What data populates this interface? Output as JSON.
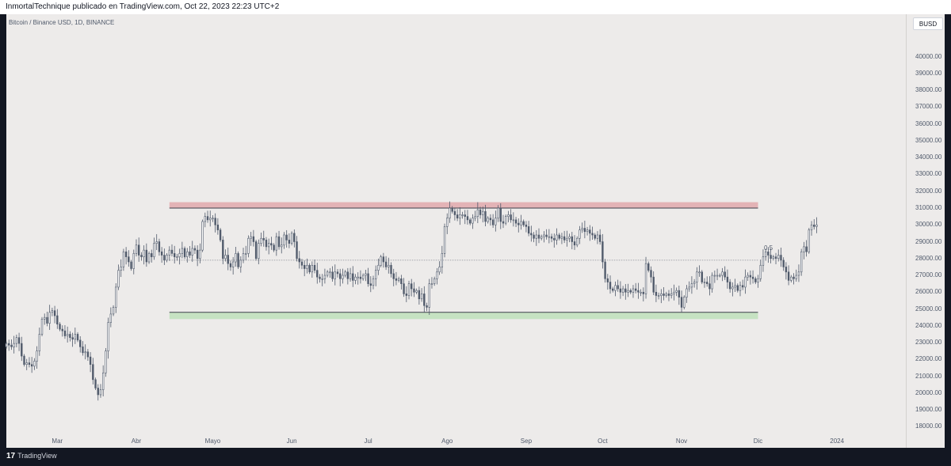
{
  "header": {
    "published_text": "InmortalTechnique publicado en TradingView.com, Oct 22, 2023 22:23 UTC+2"
  },
  "symbol": {
    "title": "Bitcoin / Binance USD, 1D, BINANCE",
    "currency": "BUSD"
  },
  "footer": {
    "logo_mark": "17",
    "logo_text": "TradingView"
  },
  "colors": {
    "background": "#edebea",
    "candle": "#505a6b",
    "resistance_zone": "#e3b3b6",
    "support_zone": "#c6e2c2",
    "level_line": "#3d3f4a"
  },
  "chart_data": {
    "type": "candlestick",
    "ylim": [
      17500,
      41300
    ],
    "y_ticks": [
      18000,
      19000,
      20000,
      21000,
      22000,
      23000,
      24000,
      25000,
      26000,
      27000,
      28000,
      29000,
      30000,
      31000,
      32000,
      33000,
      34000,
      35000,
      36000,
      37000,
      38000,
      39000,
      40000
    ],
    "y_tick_labels": [
      "18000.00",
      "19000.00",
      "20000.00",
      "21000.00",
      "22000.00",
      "23000.00",
      "24000.00",
      "25000.00",
      "26000.00",
      "27000.00",
      "28000.00",
      "29000.00",
      "30000.00",
      "31000.00",
      "32000.00",
      "33000.00",
      "34000.00",
      "35000.00",
      "36000.00",
      "37000.00",
      "38000.00",
      "39000.00",
      "40000.00"
    ],
    "x_range": [
      "2023-02-09",
      "2024-01-28"
    ],
    "x_ticks": [
      {
        "label": "Mar",
        "date": "2023-03-01"
      },
      {
        "label": "Abr",
        "date": "2023-04-01"
      },
      {
        "label": "Mayo",
        "date": "2023-05-01"
      },
      {
        "label": "Jun",
        "date": "2023-06-01"
      },
      {
        "label": "Jul",
        "date": "2023-07-01"
      },
      {
        "label": "Ago",
        "date": "2023-08-01"
      },
      {
        "label": "Sep",
        "date": "2023-09-01"
      },
      {
        "label": "Oct",
        "date": "2023-10-01"
      },
      {
        "label": "Nov",
        "date": "2023-11-01"
      },
      {
        "label": "Dic",
        "date": "2023-12-01"
      },
      {
        "label": "2024",
        "date": "2024-01-01"
      }
    ],
    "close_series": {
      "start": "2023-02-09",
      "interval": "1D",
      "values": [
        22950,
        22850,
        22750,
        22950,
        23300,
        22950,
        22200,
        21700,
        21800,
        21700,
        21600,
        21900,
        22500,
        23500,
        24400,
        24500,
        24150,
        24800,
        24900,
        24600,
        24100,
        23800,
        23700,
        23400,
        23500,
        23300,
        23200,
        23500,
        23150,
        22750,
        22400,
        22450,
        22150,
        21700,
        20800,
        20300,
        19900,
        20200,
        21200,
        22500,
        24200,
        24700,
        25100,
        26300,
        27300,
        27500,
        28400,
        28100,
        27800,
        27400,
        28300,
        28800,
        28200,
        28100,
        28500,
        27800,
        28300,
        28100,
        28900,
        29000,
        28400,
        28200,
        27900,
        28200,
        28500,
        28300,
        28100,
        28100,
        28300,
        28600,
        28100,
        28400,
        28200,
        28600,
        28500,
        28000,
        28500,
        30200,
        30500,
        30300,
        30400,
        30400,
        30000,
        29700,
        29100,
        28000,
        28200,
        27700,
        27500,
        27800,
        28300,
        27500,
        27900,
        28300,
        28300,
        29200,
        29300,
        29000,
        28000,
        28900,
        29200,
        29100,
        28700,
        28900,
        28800,
        28500,
        29300,
        28700,
        28800,
        29400,
        29100,
        28900,
        29500,
        29000,
        28000,
        27800,
        27600,
        27400,
        27600,
        27200,
        27600,
        27300,
        26900,
        26800,
        26800,
        27000,
        27200,
        27200,
        26800,
        27200,
        27100,
        26800,
        27000,
        27200,
        26800,
        27100,
        26700,
        26900,
        26900,
        26800,
        27000,
        27100,
        26500,
        26400,
        26800,
        27300,
        27600,
        28100,
        27800,
        27500,
        27600,
        27100,
        26800,
        26700,
        26800,
        26500,
        25900,
        25800,
        26500,
        26200,
        26000,
        26100,
        25600,
        25900,
        25200,
        25100,
        26500,
        26500,
        26800,
        27200,
        27500,
        28300,
        29900,
        30400,
        31000,
        30800,
        30600,
        30400,
        30600,
        30600,
        30500,
        30300,
        30100,
        30400,
        30500,
        30900,
        30600,
        30800,
        30200,
        30400,
        30300,
        30000,
        30400,
        31000,
        30200,
        30100,
        30500,
        30600,
        30300,
        30300,
        30100,
        30000,
        30200,
        30000,
        29900,
        29500,
        29400,
        29200,
        29400,
        29200,
        29300,
        29400,
        29300,
        29300,
        29200,
        29100,
        29400,
        29200,
        29300,
        29100,
        29200,
        29300,
        29000,
        28800,
        29200,
        29700,
        29800,
        29600,
        29700,
        29500,
        29400,
        29200,
        29400,
        29000,
        27800,
        26800,
        26600,
        26200,
        26100,
        26400,
        26200,
        26000,
        26200,
        26000,
        26100,
        26000,
        26200,
        26100,
        26000,
        26000,
        25900,
        27700,
        27300,
        26900,
        26000,
        25800,
        25800,
        25900,
        25800,
        25900,
        25800,
        25900,
        26000,
        26100,
        25700,
        25100,
        25700,
        26200,
        26300,
        26500,
        26600,
        27200,
        27200,
        26600,
        26600,
        26500,
        26200,
        27000,
        27000,
        27000,
        27000,
        27200,
        26900,
        26600,
        26200,
        26300,
        26400,
        26100,
        26400,
        26300,
        26900,
        27000,
        26900,
        26800,
        26600,
        26800,
        27600,
        28100,
        28400,
        28200,
        28000,
        28100,
        28000,
        28200,
        27900,
        27500,
        27200,
        26700,
        26900,
        26800,
        27000,
        27200,
        28400,
        28700,
        28400,
        29700,
        30000,
        29900,
        30000
      ]
    }
  },
  "annotations": {
    "fib_label": "0.5",
    "resistance_zone": {
      "from_date": "2023-04-14",
      "to_date": "2023-12-01",
      "top": 31350,
      "bottom": 31000
    },
    "support_zone": {
      "from_date": "2023-04-14",
      "to_date": "2023-12-01",
      "top": 24800,
      "bottom": 24400
    },
    "upper_line": 31000,
    "lower_line": 24800,
    "mid_line": 27900
  }
}
